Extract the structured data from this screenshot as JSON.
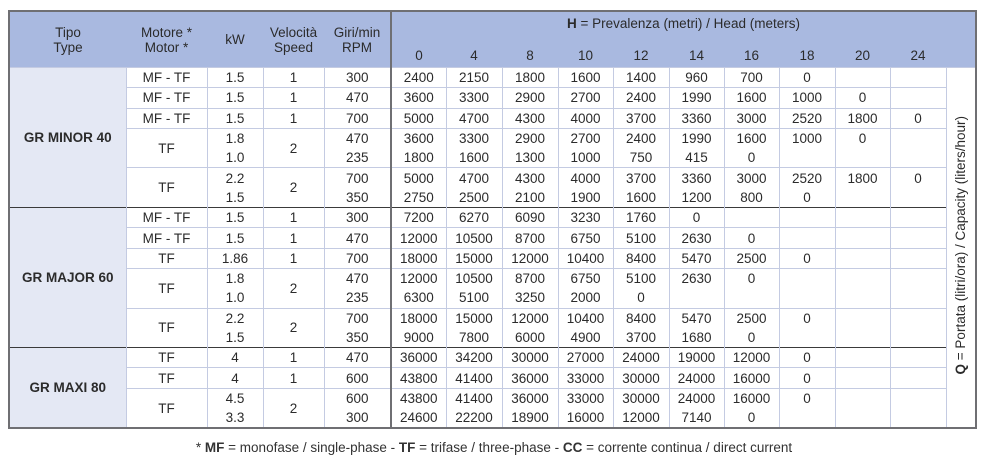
{
  "header": {
    "type": [
      "Tipo",
      "Type"
    ],
    "motor": [
      "Motore *",
      "Motor *"
    ],
    "kw": "kW",
    "speed": [
      "Velocità",
      "Speed"
    ],
    "rpm": [
      "Giri/min",
      "RPM"
    ],
    "head_prefix": "H",
    "head_title": " = Prevalenza (metri) / Head (meters)",
    "heads": [
      "0",
      "4",
      "8",
      "10",
      "12",
      "14",
      "16",
      "18",
      "20",
      "24"
    ]
  },
  "q_prefix": "Q",
  "q_label": " = Portata (litri/ora) / Capacity (liters/hour)",
  "groups": [
    {
      "name": "GR MINOR 40",
      "rows": [
        {
          "motor": "MF - TF",
          "kw": [
            "1.5"
          ],
          "speed": "1",
          "rpm": [
            "300"
          ],
          "values": [
            [
              "2400",
              "2150",
              "1800",
              "1600",
              "1400",
              "960",
              "700",
              "0",
              "",
              ""
            ]
          ]
        },
        {
          "motor": "MF - TF",
          "kw": [
            "1.5"
          ],
          "speed": "1",
          "rpm": [
            "470"
          ],
          "values": [
            [
              "3600",
              "3300",
              "2900",
              "2700",
              "2400",
              "1990",
              "1600",
              "1000",
              "0",
              ""
            ]
          ]
        },
        {
          "motor": "MF - TF",
          "kw": [
            "1.5"
          ],
          "speed": "1",
          "rpm": [
            "700"
          ],
          "values": [
            [
              "5000",
              "4700",
              "4300",
              "4000",
              "3700",
              "3360",
              "3000",
              "2520",
              "1800",
              "0"
            ]
          ]
        },
        {
          "motor": "TF",
          "kw": [
            "1.8",
            "1.0"
          ],
          "speed": "2",
          "rpm": [
            "470",
            "235"
          ],
          "values": [
            [
              "3600",
              "3300",
              "2900",
              "2700",
              "2400",
              "1990",
              "1600",
              "1000",
              "0",
              ""
            ],
            [
              "1800",
              "1600",
              "1300",
              "1000",
              "750",
              "415",
              "0",
              "",
              "",
              ""
            ]
          ]
        },
        {
          "motor": "TF",
          "kw": [
            "2.2",
            "1.5"
          ],
          "speed": "2",
          "rpm": [
            "700",
            "350"
          ],
          "values": [
            [
              "5000",
              "4700",
              "4300",
              "4000",
              "3700",
              "3360",
              "3000",
              "2520",
              "1800",
              "0"
            ],
            [
              "2750",
              "2500",
              "2100",
              "1900",
              "1600",
              "1200",
              "800",
              "0",
              "",
              ""
            ]
          ]
        }
      ]
    },
    {
      "name": "GR MAJOR 60",
      "rows": [
        {
          "motor": "MF - TF",
          "kw": [
            "1.5"
          ],
          "speed": "1",
          "rpm": [
            "300"
          ],
          "values": [
            [
              "7200",
              "6270",
              "6090",
              "3230",
              "1760",
              "0",
              "",
              "",
              "",
              ""
            ]
          ]
        },
        {
          "motor": "MF - TF",
          "kw": [
            "1.5"
          ],
          "speed": "1",
          "rpm": [
            "470"
          ],
          "values": [
            [
              "12000",
              "10500",
              "8700",
              "6750",
              "5100",
              "2630",
              "0",
              "",
              "",
              ""
            ]
          ]
        },
        {
          "motor": "TF",
          "kw": [
            "1.86"
          ],
          "speed": "1",
          "rpm": [
            "700"
          ],
          "values": [
            [
              "18000",
              "15000",
              "12000",
              "10400",
              "8400",
              "5470",
              "2500",
              "0",
              "",
              ""
            ]
          ]
        },
        {
          "motor": "TF",
          "kw": [
            "1.8",
            "1.0"
          ],
          "speed": "2",
          "rpm": [
            "470",
            "235"
          ],
          "values": [
            [
              "12000",
              "10500",
              "8700",
              "6750",
              "5100",
              "2630",
              "0",
              "",
              "",
              ""
            ],
            [
              "6300",
              "5100",
              "3250",
              "2000",
              "0",
              "",
              "",
              "",
              "",
              ""
            ]
          ]
        },
        {
          "motor": "TF",
          "kw": [
            "2.2",
            "1.5"
          ],
          "speed": "2",
          "rpm": [
            "700",
            "350"
          ],
          "values": [
            [
              "18000",
              "15000",
              "12000",
              "10400",
              "8400",
              "5470",
              "2500",
              "0",
              "",
              ""
            ],
            [
              "9000",
              "7800",
              "6000",
              "4900",
              "3700",
              "1680",
              "0",
              "",
              "",
              ""
            ]
          ]
        }
      ]
    },
    {
      "name": "GR MAXI 80",
      "rows": [
        {
          "motor": "TF",
          "kw": [
            "4"
          ],
          "speed": "1",
          "rpm": [
            "470"
          ],
          "values": [
            [
              "36000",
              "34200",
              "30000",
              "27000",
              "24000",
              "19000",
              "12000",
              "0",
              "",
              ""
            ]
          ]
        },
        {
          "motor": "TF",
          "kw": [
            "4"
          ],
          "speed": "1",
          "rpm": [
            "600"
          ],
          "values": [
            [
              "43800",
              "41400",
              "36000",
              "33000",
              "30000",
              "24000",
              "16000",
              "0",
              "",
              ""
            ]
          ]
        },
        {
          "motor": "TF",
          "kw": [
            "4.5",
            "3.3"
          ],
          "speed": "2",
          "rpm": [
            "600",
            "300"
          ],
          "values": [
            [
              "43800",
              "41400",
              "36000",
              "33000",
              "30000",
              "24000",
              "16000",
              "0",
              "",
              ""
            ],
            [
              "24600",
              "22200",
              "18900",
              "16000",
              "12000",
              "7140",
              "0",
              "",
              "",
              ""
            ]
          ]
        }
      ]
    }
  ],
  "footnote": {
    "mf": "MF",
    "mf_text": " = monofase / single-phase - ",
    "tf": "TF",
    "tf_text": " = trifase / three-phase - ",
    "cc": "CC",
    "cc_text": " = corrente continua / direct current",
    "star": "* "
  },
  "colors": {
    "header_bg": "#a9b9e0",
    "type_bg": "#e4e8f4",
    "grid": "#c4cbe2"
  }
}
